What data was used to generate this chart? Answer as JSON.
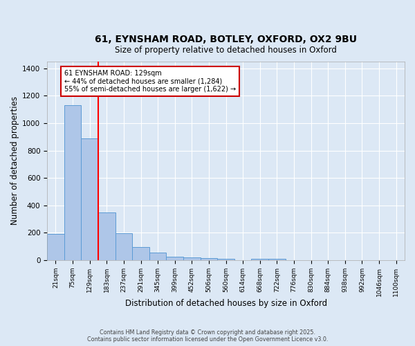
{
  "title_line1": "61, EYNSHAM ROAD, BOTLEY, OXFORD, OX2 9BU",
  "title_line2": "Size of property relative to detached houses in Oxford",
  "xlabel": "Distribution of detached houses by size in Oxford",
  "ylabel": "Number of detached properties",
  "bar_labels": [
    "21sqm",
    "75sqm",
    "129sqm",
    "183sqm",
    "237sqm",
    "291sqm",
    "345sqm",
    "399sqm",
    "452sqm",
    "506sqm",
    "560sqm",
    "614sqm",
    "668sqm",
    "722sqm",
    "776sqm",
    "830sqm",
    "884sqm",
    "938sqm",
    "992sqm",
    "1046sqm",
    "1100sqm"
  ],
  "bar_values": [
    190,
    1130,
    890,
    350,
    195,
    95,
    57,
    25,
    22,
    15,
    10,
    0,
    8,
    8,
    0,
    0,
    0,
    0,
    0,
    0,
    0
  ],
  "bar_color": "#aec6e8",
  "bar_edge_color": "#5b9bd5",
  "background_color": "#dce8f5",
  "grid_color": "#ffffff",
  "red_line_index": 2,
  "annotation_text": "61 EYNSHAM ROAD: 129sqm\n← 44% of detached houses are smaller (1,284)\n55% of semi-detached houses are larger (1,622) →",
  "annotation_box_color": "#ffffff",
  "annotation_edge_color": "#cc0000",
  "ylim": [
    0,
    1450
  ],
  "yticks": [
    0,
    200,
    400,
    600,
    800,
    1000,
    1200,
    1400
  ],
  "footer_line1": "Contains HM Land Registry data © Crown copyright and database right 2025.",
  "footer_line2": "Contains public sector information licensed under the Open Government Licence v3.0."
}
